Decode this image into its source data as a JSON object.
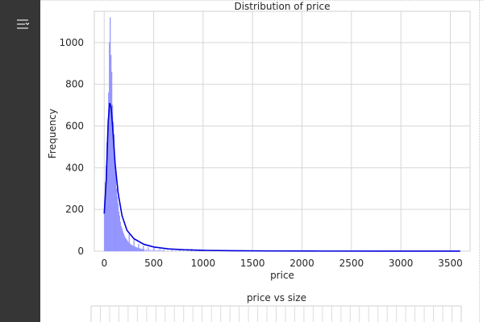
{
  "sidebar": {
    "toggle_icon": "filter-sliders-icon"
  },
  "chart_data": [
    {
      "type": "bar",
      "subtype": "histogram_with_kde",
      "title": "Distribution of price",
      "xlabel": "price",
      "ylabel": "Frequency",
      "xlim": [
        -100,
        3700
      ],
      "ylim": [
        0,
        1150
      ],
      "xticks": [
        0,
        500,
        1000,
        1500,
        2000,
        2500,
        3000,
        3500
      ],
      "yticks": [
        0,
        200,
        400,
        600,
        800,
        1000
      ],
      "grid": true,
      "bar_color": "#8080ff",
      "line_color": "#0000dd",
      "bin_width": 8,
      "bins": [
        {
          "x": 0,
          "y": 180
        },
        {
          "x": 8,
          "y": 330
        },
        {
          "x": 16,
          "y": 410
        },
        {
          "x": 24,
          "y": 520
        },
        {
          "x": 32,
          "y": 600
        },
        {
          "x": 40,
          "y": 760
        },
        {
          "x": 48,
          "y": 1000
        },
        {
          "x": 56,
          "y": 1120
        },
        {
          "x": 64,
          "y": 940
        },
        {
          "x": 72,
          "y": 860
        },
        {
          "x": 80,
          "y": 700
        },
        {
          "x": 88,
          "y": 620
        },
        {
          "x": 96,
          "y": 560
        },
        {
          "x": 104,
          "y": 430
        },
        {
          "x": 112,
          "y": 380
        },
        {
          "x": 120,
          "y": 300
        },
        {
          "x": 128,
          "y": 260
        },
        {
          "x": 136,
          "y": 230
        },
        {
          "x": 144,
          "y": 190
        },
        {
          "x": 152,
          "y": 170
        },
        {
          "x": 160,
          "y": 140
        },
        {
          "x": 168,
          "y": 120
        },
        {
          "x": 176,
          "y": 110
        },
        {
          "x": 184,
          "y": 95
        },
        {
          "x": 192,
          "y": 85
        },
        {
          "x": 200,
          "y": 75
        },
        {
          "x": 208,
          "y": 65
        },
        {
          "x": 216,
          "y": 60
        },
        {
          "x": 224,
          "y": 55
        },
        {
          "x": 232,
          "y": 48
        },
        {
          "x": 240,
          "y": 42
        },
        {
          "x": 248,
          "y": 80
        },
        {
          "x": 256,
          "y": 36
        },
        {
          "x": 264,
          "y": 32
        },
        {
          "x": 272,
          "y": 30
        },
        {
          "x": 280,
          "y": 27
        },
        {
          "x": 288,
          "y": 24
        },
        {
          "x": 296,
          "y": 55
        },
        {
          "x": 304,
          "y": 22
        },
        {
          "x": 312,
          "y": 20
        },
        {
          "x": 320,
          "y": 18
        },
        {
          "x": 328,
          "y": 17
        },
        {
          "x": 336,
          "y": 15
        },
        {
          "x": 344,
          "y": 35
        },
        {
          "x": 352,
          "y": 14
        },
        {
          "x": 360,
          "y": 12
        },
        {
          "x": 368,
          "y": 11
        },
        {
          "x": 376,
          "y": 10
        },
        {
          "x": 384,
          "y": 9
        },
        {
          "x": 392,
          "y": 25
        },
        {
          "x": 400,
          "y": 8
        },
        {
          "x": 420,
          "y": 7
        },
        {
          "x": 440,
          "y": 18
        },
        {
          "x": 460,
          "y": 6
        },
        {
          "x": 480,
          "y": 5
        },
        {
          "x": 500,
          "y": 15
        },
        {
          "x": 520,
          "y": 4
        },
        {
          "x": 540,
          "y": 4
        },
        {
          "x": 560,
          "y": 10
        },
        {
          "x": 580,
          "y": 3
        },
        {
          "x": 600,
          "y": 8
        },
        {
          "x": 640,
          "y": 3
        },
        {
          "x": 680,
          "y": 6
        },
        {
          "x": 720,
          "y": 2
        },
        {
          "x": 760,
          "y": 5
        },
        {
          "x": 800,
          "y": 2
        },
        {
          "x": 840,
          "y": 3
        },
        {
          "x": 880,
          "y": 10
        },
        {
          "x": 920,
          "y": 2
        },
        {
          "x": 960,
          "y": 3
        },
        {
          "x": 1000,
          "y": 2
        },
        {
          "x": 1100,
          "y": 1
        },
        {
          "x": 1200,
          "y": 1
        }
      ],
      "kde": {
        "x": [
          0,
          20,
          40,
          55,
          70,
          90,
          110,
          140,
          180,
          230,
          300,
          400,
          500,
          650,
          800,
          1000,
          1300,
          1700,
          2200,
          2800,
          3300,
          3600
        ],
        "y": [
          180,
          340,
          620,
          710,
          690,
          560,
          420,
          280,
          170,
          100,
          60,
          33,
          20,
          11,
          7,
          4,
          2,
          1,
          0.5,
          0.3,
          0.2,
          0.1
        ]
      }
    },
    {
      "type": "scatter",
      "title": "price vs size",
      "points": [
        {
          "x_frac": 0.65,
          "y_frac": 0.95
        }
      ]
    }
  ]
}
